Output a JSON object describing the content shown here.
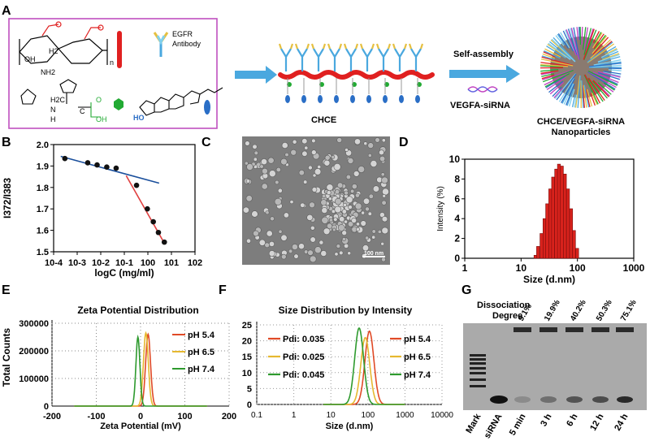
{
  "panels": {
    "A": {
      "label": "A",
      "egfr_antibody": [
        "EGFR",
        "Antibody"
      ],
      "polymer_labels": [
        "H2",
        "NH2",
        "OH",
        "n"
      ],
      "histidine_labels": [
        "H2C",
        "N",
        "H",
        "OH",
        "C",
        "O"
      ],
      "chce_label": "CHCE",
      "self_assembly_label": "Self-assembly",
      "vegfa_sirna_label": "VEGFA-siRNA",
      "product_label": [
        "CHCE/VEGFA-siRNA",
        "Nanoparticles"
      ],
      "colors": {
        "border": "#c050c0",
        "arrow": "#4aa8df",
        "chain": "#e02020",
        "histidine": "#22aa33",
        "cholesterol": "#2a6ec6"
      }
    },
    "B": {
      "label": "B",
      "ylabel": "I372/I383",
      "xlabel": "logC (mg/ml)",
      "yticks": [
        "1.5",
        "1.6",
        "1.7",
        "1.8",
        "1.9",
        "2.0"
      ],
      "xticks": [
        "10-4",
        "10-3",
        "10-2",
        "10-1",
        "100",
        "101",
        "102"
      ]
    },
    "C": {
      "label": "C",
      "scale_bar": "100 nm"
    },
    "D": {
      "label": "D",
      "ylabel": "Intensity (%)",
      "xlabel": "Size (d.nm)",
      "yticks": [
        "0",
        "2",
        "4",
        "6",
        "8",
        "10"
      ],
      "xticks": [
        "1",
        "10",
        "100",
        "1000"
      ]
    },
    "E": {
      "label": "E",
      "title": "Zeta Potential Distribution",
      "ylabel": "Total Counts",
      "xlabel": "Zeta Potential (mV)",
      "yticks": [
        "0",
        "100000",
        "200000",
        "300000"
      ],
      "xticks": [
        "-200",
        "-100",
        "0",
        "100",
        "200"
      ],
      "legend": [
        "pH 5.4",
        "pH 6.5",
        "pH 7.4"
      ]
    },
    "F": {
      "label": "F",
      "title": "Size Distribution by Intensity",
      "xlabel": "Size (d.nm)",
      "yticks": [
        "0",
        "5",
        "10",
        "15",
        "20",
        "25"
      ],
      "xticks": [
        "0.1",
        "1",
        "10",
        "100",
        "1000",
        "10000"
      ],
      "pdi": [
        "Pdi: 0.035",
        "Pdi: 0.025",
        "Pdi: 0.045"
      ],
      "legend": [
        "pH 5.4",
        "pH 6.5",
        "pH 7.4"
      ]
    },
    "G": {
      "label": "G",
      "header": [
        "Dissociation",
        "Degree"
      ],
      "degrees": [
        "9.1%",
        "19.9%",
        "40.2%",
        "50.3%",
        "75.1%"
      ],
      "lanes": [
        "Mark",
        "siRNA",
        "5 min",
        "3 h",
        "6 h",
        "12 h",
        "24 h"
      ]
    }
  },
  "series_colors": {
    "pH 5.4": "#e04a26",
    "pH 6.5": "#e6b830",
    "pH 7.4": "#2e9a2e"
  },
  "chart_data": [
    {
      "type": "line",
      "id": "B",
      "ylabel": "I372/I383",
      "xlabel": "logC (mg/ml)",
      "xlog": true,
      "xlim": [
        0.0001,
        100
      ],
      "ylim": [
        1.5,
        2.0
      ],
      "points": [
        [
          0.0003,
          1.935
        ],
        [
          0.0028,
          1.915
        ],
        [
          0.007,
          1.905
        ],
        [
          0.018,
          1.895
        ],
        [
          0.045,
          1.89
        ],
        [
          0.33,
          1.81
        ],
        [
          0.95,
          1.7
        ],
        [
          1.7,
          1.64
        ],
        [
          2.8,
          1.59
        ],
        [
          5.0,
          1.545
        ]
      ],
      "fit_lines": [
        {
          "color": "#1a4f9c",
          "x": [
            0.0002,
            3.0
          ],
          "y": [
            1.945,
            1.82
          ]
        },
        {
          "color": "#e04040",
          "x": [
            0.12,
            5.0
          ],
          "y": [
            1.855,
            1.54
          ]
        }
      ]
    },
    {
      "type": "bar",
      "id": "D",
      "ylabel": "Intensity (%)",
      "xlabel": "Size (d.nm)",
      "xlog": true,
      "xlim": [
        1,
        1000
      ],
      "ylim": [
        0,
        10
      ],
      "x": [
        18,
        20,
        23,
        26,
        29,
        33,
        37,
        42,
        47,
        53,
        60,
        68,
        77,
        87,
        99
      ],
      "values": [
        0.3,
        1.2,
        2.5,
        4.0,
        5.5,
        7.0,
        8.2,
        9.0,
        9.5,
        9.3,
        8.5,
        7.0,
        5.0,
        2.8,
        1.0
      ]
    },
    {
      "type": "line",
      "id": "E",
      "title": "Zeta Potential Distribution",
      "ylabel": "Total Counts",
      "xlabel": "Zeta Potential (mV)",
      "xlim": [
        -200,
        200
      ],
      "ylim": [
        0,
        300000
      ],
      "series": [
        {
          "name": "pH 5.4",
          "center": 17,
          "width": 5.5,
          "peak": 260000
        },
        {
          "name": "pH 6.5",
          "center": 12,
          "width": 5.5,
          "peak": 265000
        },
        {
          "name": "pH 7.4",
          "center": -6,
          "width": 4.5,
          "peak": 250000
        }
      ]
    },
    {
      "type": "line",
      "id": "F",
      "title": "Size Distribution by Intensity",
      "xlabel": "Size (d.nm)",
      "xlog": true,
      "xlim": [
        0.1,
        10000
      ],
      "ylim": [
        0,
        25
      ],
      "series": [
        {
          "name": "pH 5.4",
          "center": 110,
          "spread": 0.12,
          "peak": 23
        },
        {
          "name": "pH 6.5",
          "center": 85,
          "spread": 0.12,
          "peak": 21
        },
        {
          "name": "pH 7.4",
          "center": 58,
          "spread": 0.12,
          "peak": 24
        }
      ]
    }
  ]
}
